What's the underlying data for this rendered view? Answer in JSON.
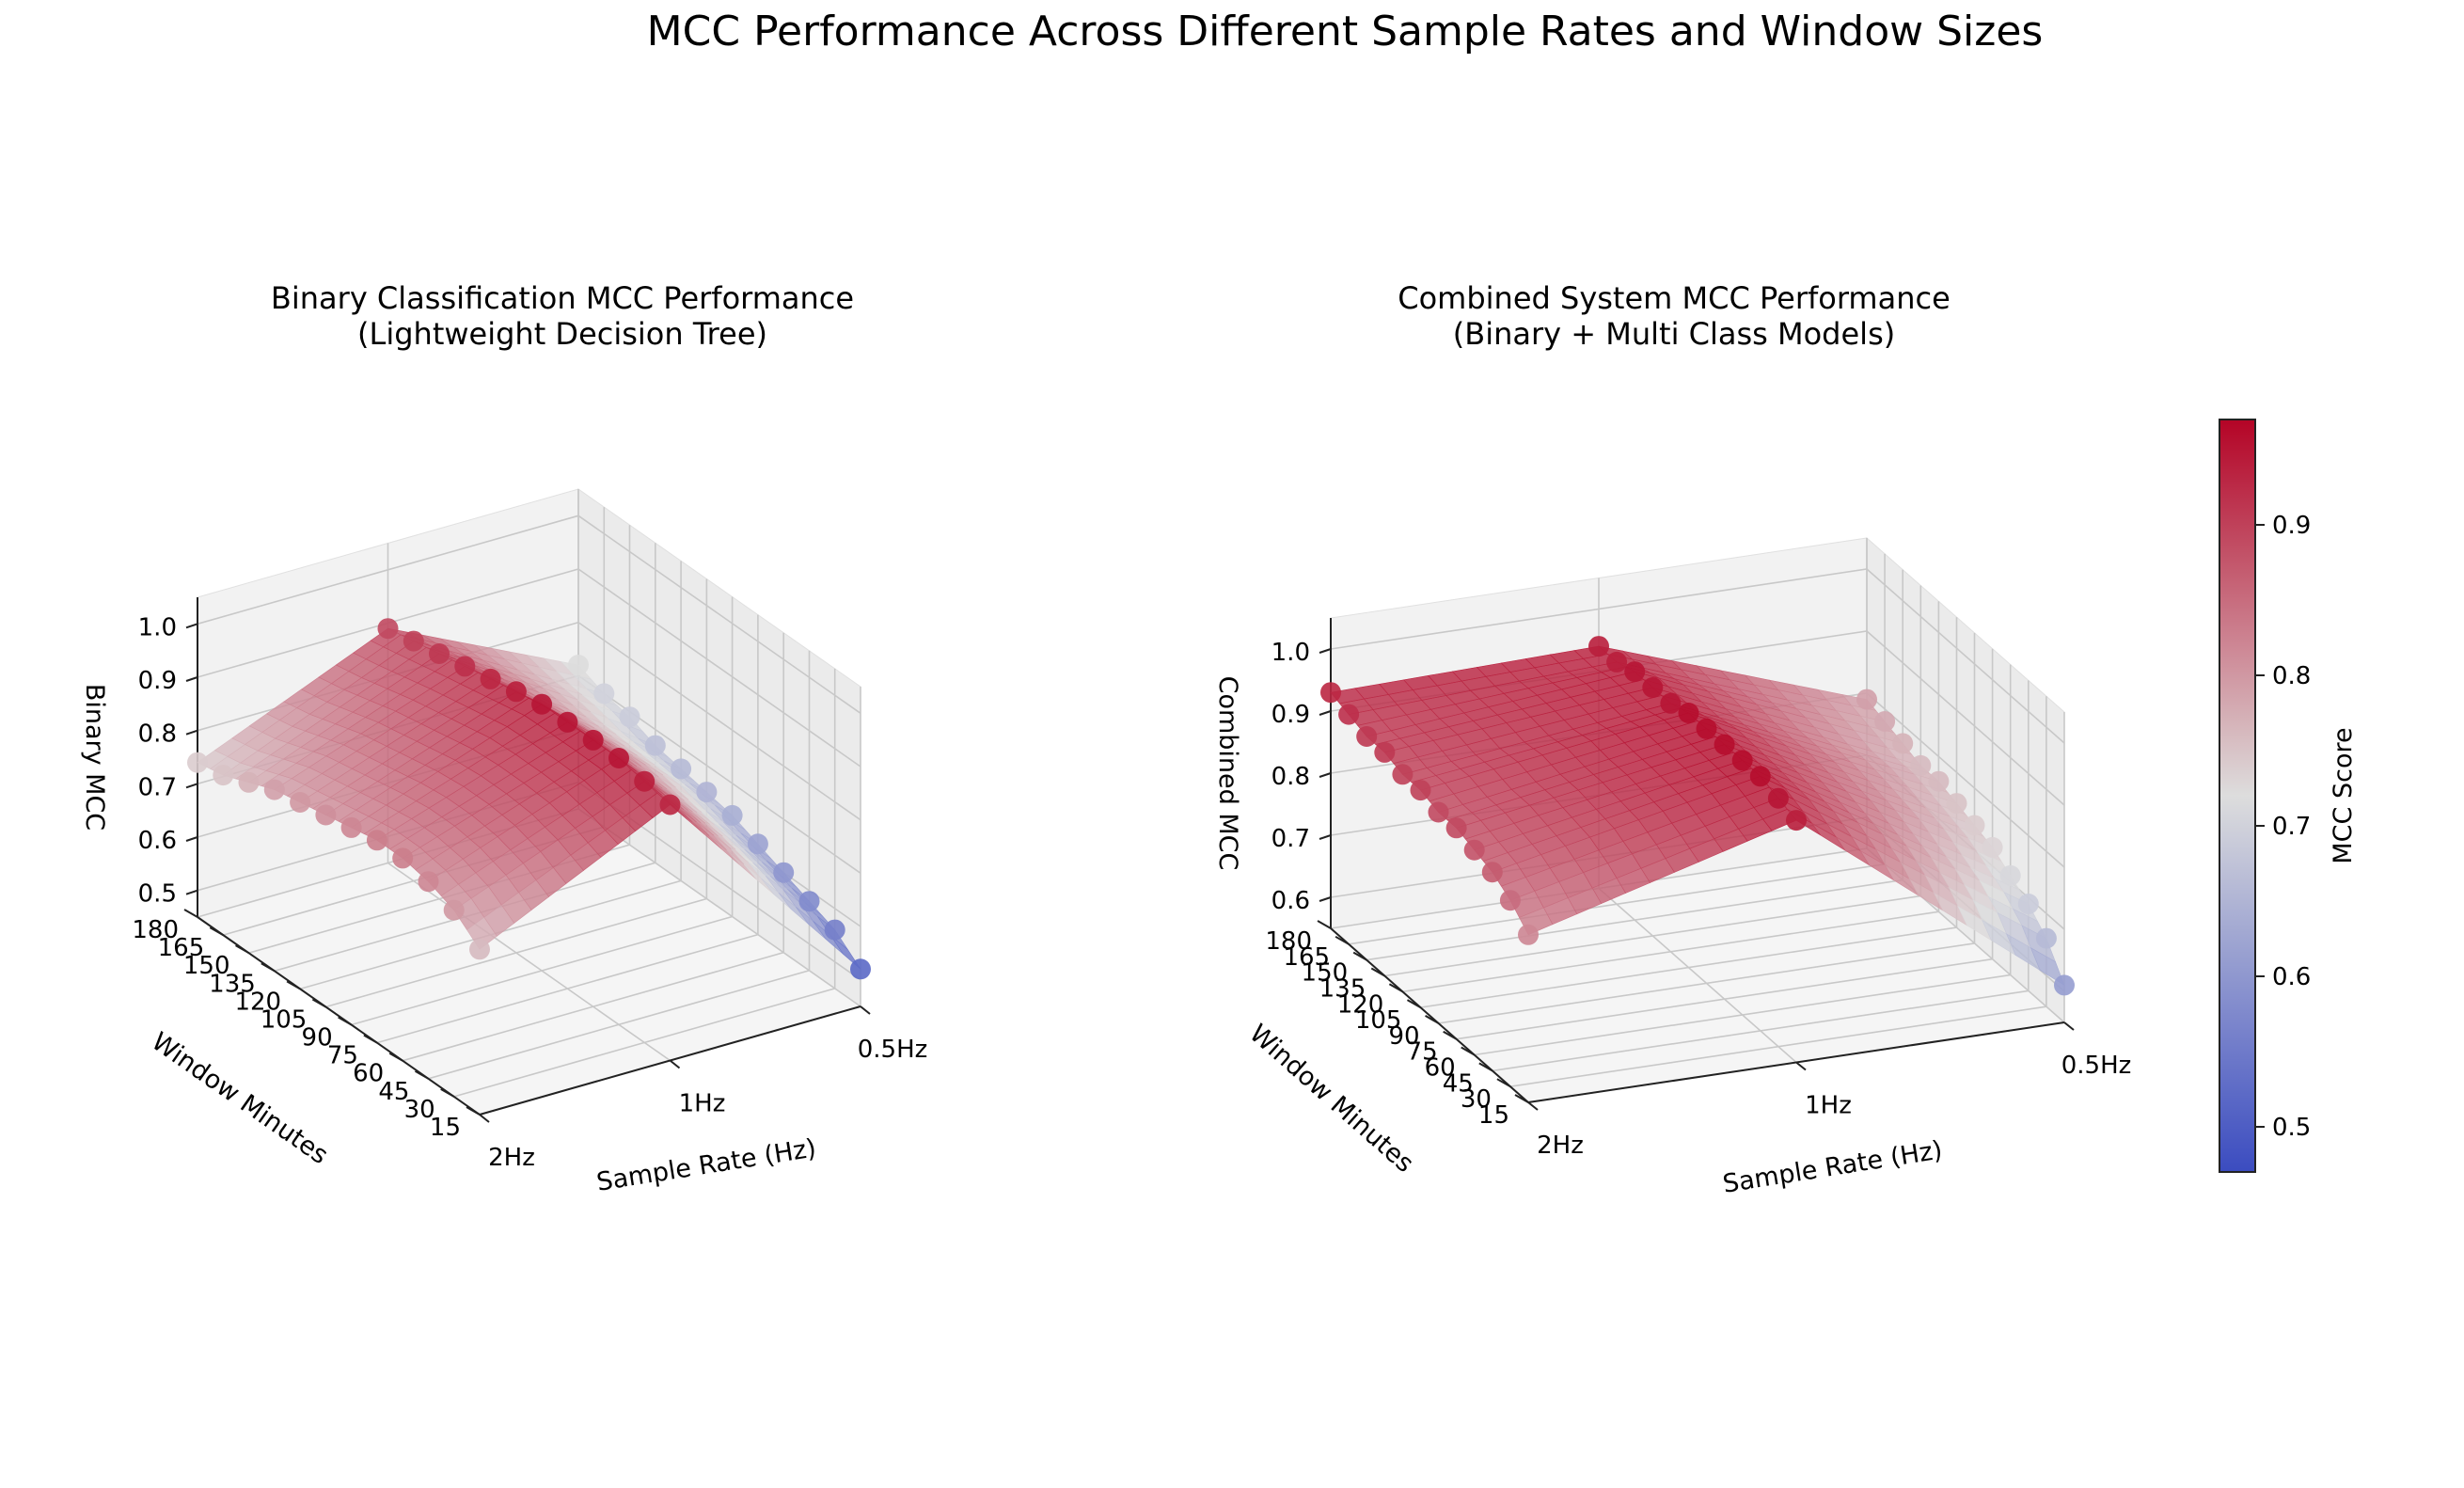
{
  "figure_title": "MCC Performance Across Different Sample Rates and Window Sizes",
  "colorbar": {
    "label": "MCC Score",
    "min": 0.47,
    "max": 0.97,
    "ticks": [
      "0.5",
      "0.6",
      "0.7",
      "0.8",
      "0.9"
    ],
    "colormap": "coolwarm",
    "color_low": "#3b4cc0",
    "color_mid": "#dddddd",
    "color_high": "#b40426"
  },
  "chart_data": [
    {
      "type": "surface3d",
      "title_line1": "Binary Classification MCC Performance",
      "title_line2": "(Lightweight Decision Tree)",
      "xlabel": "Sample Rate (Hz)",
      "ylabel": "Window Minutes",
      "zlabel": "Binary MCC",
      "x_ticks": [
        "2Hz",
        "1Hz",
        "0.5Hz"
      ],
      "y_ticks": [
        "15",
        "30",
        "45",
        "60",
        "75",
        "90",
        "105",
        "120",
        "135",
        "150",
        "165",
        "180"
      ],
      "z_ticks": [
        "0.5",
        "0.6",
        "0.7",
        "0.8",
        "0.9",
        "1.0"
      ],
      "zlim": [
        0.45,
        1.05
      ],
      "grid": true,
      "series": [
        {
          "x": "2Hz",
          "values": [
            0.76,
            0.8,
            0.82,
            0.83,
            0.83,
            0.82,
            0.81,
            0.8,
            0.79,
            0.77,
            0.75,
            0.74
          ]
        },
        {
          "x": "1Hz",
          "values": [
            0.93,
            0.94,
            0.95,
            0.95,
            0.95,
            0.95,
            0.94,
            0.93,
            0.92,
            0.91,
            0.9,
            0.89
          ]
        },
        {
          "x": "0.5Hz",
          "values": [
            0.52,
            0.56,
            0.58,
            0.6,
            0.62,
            0.64,
            0.65,
            0.66,
            0.67,
            0.69,
            0.7,
            0.72
          ]
        }
      ]
    },
    {
      "type": "surface3d",
      "title_line1": "Combined System MCC Performance",
      "title_line2": "(Binary + Multi Class Models)",
      "xlabel": "Sample Rate (Hz)",
      "ylabel": "Window Minutes",
      "zlabel": "Combined MCC",
      "x_ticks": [
        "2Hz",
        "1Hz",
        "0.5Hz"
      ],
      "y_ticks": [
        "15",
        "30",
        "45",
        "60",
        "75",
        "90",
        "105",
        "120",
        "135",
        "150",
        "165",
        "180"
      ],
      "z_ticks": [
        "0.6",
        "0.7",
        "0.8",
        "0.9",
        "1.0"
      ],
      "zlim": [
        0.55,
        1.05
      ],
      "grid": true,
      "series": [
        {
          "x": "2Hz",
          "values": [
            0.82,
            0.85,
            0.87,
            0.88,
            0.89,
            0.89,
            0.9,
            0.9,
            0.91,
            0.91,
            0.92,
            0.93
          ]
        },
        {
          "x": "1Hz",
          "values": [
            0.94,
            0.95,
            0.96,
            0.96,
            0.96,
            0.96,
            0.96,
            0.95,
            0.95,
            0.95,
            0.94,
            0.94
          ]
        },
        {
          "x": "0.5Hz",
          "values": [
            0.61,
            0.66,
            0.69,
            0.71,
            0.73,
            0.74,
            0.75,
            0.76,
            0.76,
            0.77,
            0.78,
            0.79
          ]
        }
      ]
    }
  ]
}
